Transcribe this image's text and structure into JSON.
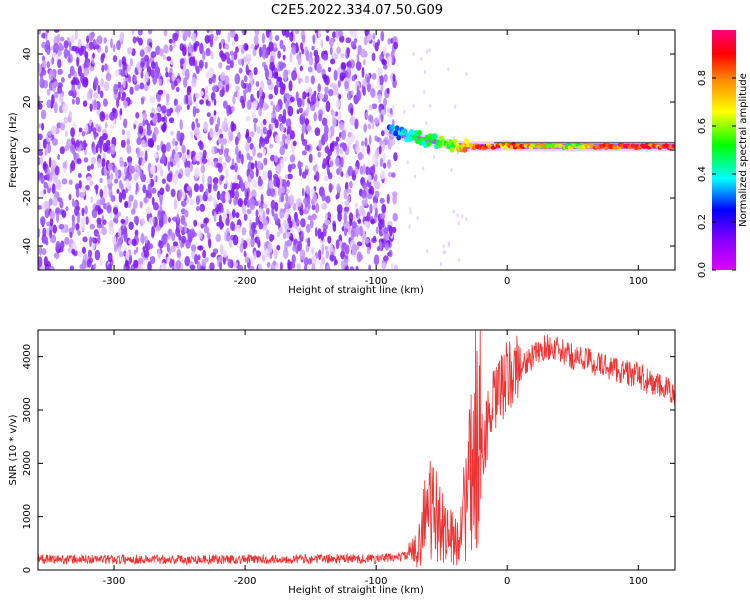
{
  "figure_title": "C2E5.2022.334.07.50.G09",
  "chart_data": [
    {
      "type": "heatmap",
      "title": "",
      "xlabel": "Height of straight line (km)",
      "ylabel": "Frequency (Hz)",
      "xlim": [
        -358,
        128
      ],
      "ylim": [
        -50,
        50
      ],
      "xticks": [
        -300,
        -200,
        -100,
        0,
        100
      ],
      "yticks": [
        -40,
        -20,
        0,
        20,
        40
      ],
      "grid": false,
      "noise_region_x": [
        -358,
        -82
      ],
      "signal_track": {
        "x": [
          -90,
          -80,
          -70,
          -60,
          -50,
          -40,
          -30,
          -20,
          -10,
          0,
          10,
          20,
          40,
          60,
          80,
          100,
          120,
          128
        ],
        "frequency_hz": [
          8,
          6,
          5,
          4,
          3,
          2,
          1.5,
          1.5,
          1.5,
          2,
          1.5,
          1.5,
          1.5,
          1.5,
          1.5,
          1.5,
          1.5,
          1.5
        ],
        "amplitude": [
          0.3,
          0.4,
          0.45,
          0.5,
          0.55,
          0.6,
          0.75,
          0.85,
          0.85,
          0.8,
          0.85,
          0.75,
          0.6,
          0.7,
          0.9,
          0.95,
          0.85,
          0.9
        ]
      },
      "colorbar": {
        "label": "Normalized spectral amplitude",
        "range": [
          0.0,
          1.0
        ],
        "ticks": [
          0.0,
          0.2,
          0.4,
          0.6,
          0.8
        ],
        "colormap": [
          "#e000ff",
          "#8a00ff",
          "#0000ff",
          "#00ffff",
          "#00ff00",
          "#ffff00",
          "#ff8000",
          "#ff0000",
          "#ff0080"
        ]
      },
      "colors": {
        "noise_light": "#d9b3ff",
        "noise_dark": "#8a00ff"
      }
    },
    {
      "type": "line",
      "title": "",
      "xlabel": "Height of straight line (km)",
      "ylabel": "SNR (10 * v/v)",
      "xlim": [
        -358,
        128
      ],
      "ylim": [
        0,
        4500
      ],
      "xticks": [
        -300,
        -200,
        -100,
        0,
        100
      ],
      "yticks": [
        0,
        1000,
        2000,
        3000,
        4000
      ],
      "grid": false,
      "color": "#ee3333",
      "x": [
        -358,
        -300,
        -250,
        -200,
        -150,
        -100,
        -80,
        -70,
        -65,
        -60,
        -55,
        -50,
        -45,
        -40,
        -35,
        -30,
        -25,
        -22,
        -20,
        -15,
        -10,
        -5,
        0,
        10,
        20,
        30,
        40,
        50,
        60,
        70,
        80,
        90,
        100,
        110,
        120,
        128
      ],
      "y": [
        200,
        200,
        200,
        200,
        210,
        210,
        250,
        350,
        800,
        1200,
        1000,
        900,
        700,
        500,
        900,
        1400,
        2200,
        3000,
        2300,
        2700,
        3100,
        3400,
        3600,
        3800,
        4000,
        4200,
        4100,
        4000,
        3950,
        3850,
        3800,
        3700,
        3650,
        3500,
        3400,
        3300
      ]
    }
  ]
}
